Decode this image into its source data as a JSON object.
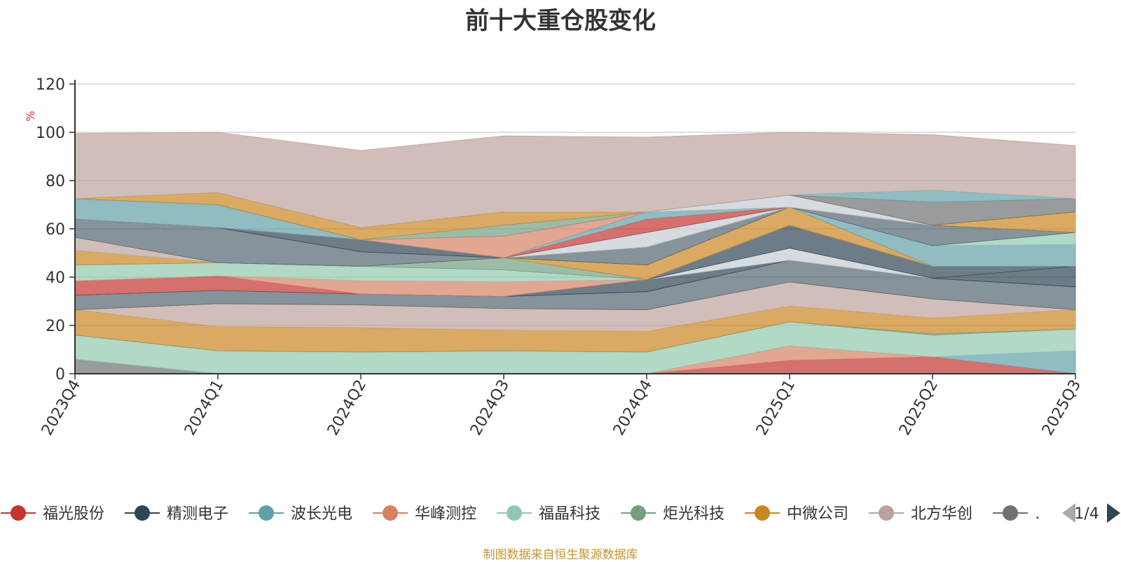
{
  "footer_text": "制图数据来自恒生聚源数据库",
  "legend": {
    "page_indicator": "1/4"
  },
  "chart_data": {
    "type": "area",
    "title": "前十大重仓股变化",
    "ylabel": "%",
    "xlabel": "",
    "ylim": [
      0,
      120
    ],
    "yticks": [
      0,
      20,
      40,
      60,
      80,
      100,
      120
    ],
    "grid": true,
    "legend_position": "bottom",
    "categories": [
      "2023Q4",
      "2024Q1",
      "2024Q2",
      "2024Q3",
      "2024Q4",
      "2025Q1",
      "2025Q2",
      "2025Q3"
    ],
    "legend_entries": [
      {
        "name": "福光股份",
        "color": "#c23531"
      },
      {
        "name": "精测电子",
        "color": "#2f4554"
      },
      {
        "name": "波长光电",
        "color": "#61a0a8"
      },
      {
        "name": "华峰测控",
        "color": "#d48265"
      },
      {
        "name": "福晶科技",
        "color": "#91c7ae"
      },
      {
        "name": "炬光科技",
        "color": "#749f83"
      },
      {
        "name": "中微公司",
        "color": "#ca8622"
      },
      {
        "name": "北方华创",
        "color": "#bda29a"
      },
      {
        "name": "…",
        "color": "#6e7074"
      }
    ],
    "bands": [
      {
        "color": "#6e7074",
        "values": [
          6,
          0,
          0,
          0,
          0,
          0,
          0,
          0
        ]
      },
      {
        "color": "#c23531",
        "values": [
          0,
          0,
          0,
          0,
          0,
          5.5,
          7,
          0
        ]
      },
      {
        "color": "#d48265",
        "values": [
          0,
          0,
          0,
          0,
          0,
          6,
          0,
          0
        ]
      },
      {
        "color": "#61a0a8",
        "values": [
          0,
          0,
          0,
          0,
          0,
          0,
          0,
          9.5
        ]
      },
      {
        "color": "#91c7ae",
        "values": [
          10,
          9.5,
          9,
          9.5,
          9,
          10,
          9,
          9
        ]
      },
      {
        "color": "#749f83",
        "values": [
          0,
          0,
          0,
          0,
          0,
          0,
          0.5,
          0
        ]
      },
      {
        "color": "#ca8622",
        "values": [
          10.5,
          10,
          10,
          8.5,
          8.5,
          6.5,
          6.5,
          8
        ]
      },
      {
        "color": "#bda29a",
        "values": [
          0,
          9.5,
          9.5,
          9,
          9,
          10,
          8,
          0
        ]
      },
      {
        "color": "#546570",
        "values": [
          6,
          5.5,
          4.5,
          5,
          7.5,
          9,
          8.5,
          9.5
        ]
      },
      {
        "color": "#2f4554",
        "values": [
          0,
          0,
          0,
          0,
          5,
          0,
          0,
          8.5
        ]
      },
      {
        "color": "#c4ccd3",
        "values": [
          0,
          0,
          0,
          0,
          0,
          5,
          0,
          0
        ]
      },
      {
        "color": "#2f4554",
        "values": [
          0,
          0,
          0,
          0,
          0,
          9.5,
          5,
          0
        ]
      },
      {
        "color": "#c23531",
        "values": [
          6,
          6,
          0,
          0,
          0,
          0,
          0,
          0
        ]
      },
      {
        "color": "#d48265",
        "values": [
          0,
          0,
          5.5,
          6,
          0,
          0,
          0,
          0
        ]
      },
      {
        "color": "#91c7ae",
        "values": [
          6.5,
          5.5,
          6,
          5,
          0,
          0,
          0,
          0
        ]
      },
      {
        "color": "#749f83",
        "values": [
          0,
          0,
          0,
          5,
          0,
          0,
          0,
          0
        ]
      },
      {
        "color": "#ca8622",
        "values": [
          6,
          0,
          0,
          0,
          6,
          7.5,
          0,
          0
        ]
      },
      {
        "color": "#61a0a8",
        "values": [
          0,
          0,
          0,
          0,
          0,
          0,
          8.5,
          9
        ]
      },
      {
        "color": "#91c7ae",
        "values": [
          0,
          0,
          0,
          0,
          0,
          0,
          0,
          5
        ]
      },
      {
        "color": "#bda29a",
        "values": [
          5.5,
          0,
          0,
          0,
          0,
          0,
          0,
          0
        ]
      },
      {
        "color": "#546570",
        "values": [
          7.5,
          14.5,
          6,
          0,
          7.5,
          0,
          8.5,
          0
        ]
      },
      {
        "color": "#2f4554",
        "values": [
          0,
          0,
          5,
          0,
          0,
          0,
          0,
          0
        ]
      },
      {
        "color": "#ca8622",
        "values": [
          0,
          0,
          0,
          0,
          0,
          0,
          0,
          8.5
        ]
      },
      {
        "color": "#c4ccd3",
        "values": [
          0,
          0,
          0,
          0,
          6,
          0,
          0,
          0
        ]
      },
      {
        "color": "#c23531",
        "values": [
          0,
          0,
          0,
          0,
          5.5,
          0,
          0,
          0
        ]
      },
      {
        "color": "#61a0a8",
        "values": [
          8.5,
          9.5,
          0,
          0,
          3,
          0,
          0,
          0
        ]
      },
      {
        "color": "#d48265",
        "values": [
          0,
          0,
          0,
          9,
          0,
          0,
          0,
          0
        ]
      },
      {
        "color": "#749f83",
        "values": [
          0,
          0,
          0,
          4.5,
          0,
          0,
          0,
          0
        ]
      },
      {
        "color": "#ca8622",
        "values": [
          0,
          5,
          5,
          5.5,
          0,
          0,
          0,
          0
        ]
      },
      {
        "color": "#c4ccd3",
        "values": [
          0,
          0,
          0,
          0,
          0,
          5,
          0,
          0
        ]
      },
      {
        "color": "#6e7074",
        "values": [
          0,
          0,
          0,
          0,
          0,
          0,
          9.5,
          5.5
        ]
      },
      {
        "color": "#61a0a8",
        "values": [
          0,
          0,
          0,
          0,
          0,
          0,
          5,
          0
        ]
      },
      {
        "color": "#bda29a",
        "values": [
          27,
          25,
          32,
          31.5,
          31,
          26,
          23,
          22
        ]
      }
    ]
  }
}
